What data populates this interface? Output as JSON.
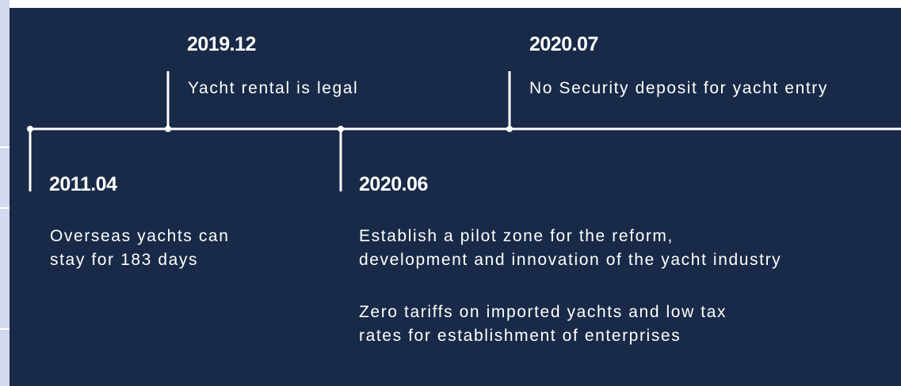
{
  "events": [
    {
      "date": "2019.12",
      "lines": [
        "Yacht rental is legal"
      ]
    },
    {
      "date": "2020.07",
      "lines": [
        "No Security deposit for yacht entry"
      ]
    },
    {
      "date": "2011.04",
      "lines": [
        "Overseas yachts can",
        "stay for 183 days"
      ]
    },
    {
      "date": "2020.06",
      "lines": [
        "Establish a pilot zone for the reform,",
        "development and innovation of the yacht industry",
        "Zero tariffs on imported yachts and low tax",
        "rates for establishment of enterprises"
      ]
    }
  ]
}
